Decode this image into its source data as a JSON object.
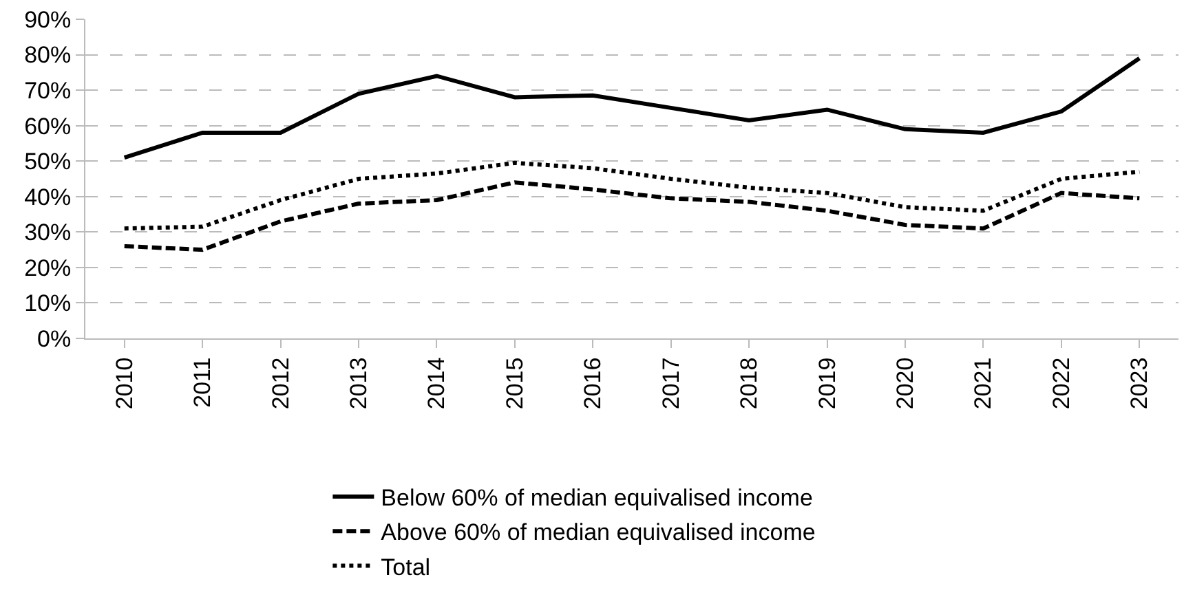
{
  "chart_data": {
    "type": "line",
    "categories": [
      "2010",
      "2011",
      "2012",
      "2013",
      "2014",
      "2015",
      "2016",
      "2017",
      "2018",
      "2019",
      "2020",
      "2021",
      "2022",
      "2023"
    ],
    "series": [
      {
        "name": "Below 60% of median equivalised income",
        "color": "#000000",
        "line_style": "solid",
        "values": [
          51,
          58,
          58,
          69,
          74,
          68,
          68.5,
          65,
          61.5,
          64.5,
          59,
          58,
          64,
          79
        ]
      },
      {
        "name": "Above 60% of median equivalised income",
        "color": "#000000",
        "line_style": "dashed",
        "values": [
          26,
          25,
          33,
          38,
          39,
          44,
          42,
          39.5,
          38.5,
          36,
          32,
          31,
          41,
          39.5
        ]
      },
      {
        "name": "Total",
        "color": "#000000",
        "line_style": "dotted",
        "values": [
          31,
          31.5,
          39,
          45,
          46.5,
          49.5,
          48,
          45,
          42.5,
          41,
          37,
          36,
          45,
          47
        ]
      }
    ],
    "ylim": [
      0,
      90
    ],
    "yticks": [
      {
        "value": 0,
        "label": "0%"
      },
      {
        "value": 10,
        "label": "10%"
      },
      {
        "value": 20,
        "label": "20%"
      },
      {
        "value": 30,
        "label": "30%"
      },
      {
        "value": 40,
        "label": "40%"
      },
      {
        "value": 50,
        "label": "50%"
      },
      {
        "value": 60,
        "label": "60%"
      },
      {
        "value": 70,
        "label": "70%"
      },
      {
        "value": 80,
        "label": "80%"
      },
      {
        "value": 90,
        "label": "90%"
      }
    ],
    "grid": "y",
    "legend": "bottom",
    "marker": "none"
  }
}
